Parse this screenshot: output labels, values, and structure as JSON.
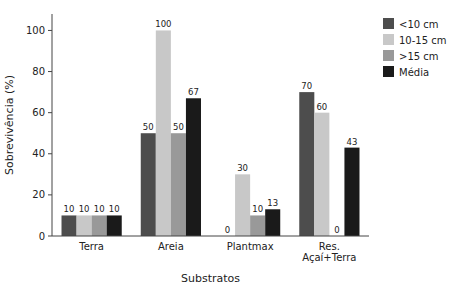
{
  "chart_data": {
    "type": "bar",
    "categories": [
      "Terra",
      "Areia",
      "Plantmax",
      "Res.\nAçaí+Terra"
    ],
    "series": [
      {
        "name": "<10 cm",
        "color": "#4d4d4d",
        "values": [
          10,
          50,
          0,
          70
        ]
      },
      {
        "name": "10-15 cm",
        "color": "#c8c8c8",
        "values": [
          10,
          100,
          30,
          60
        ]
      },
      {
        "name": ">15 cm",
        "color": "#999999",
        "values": [
          10,
          50,
          10,
          0
        ]
      },
      {
        "name": "Média",
        "color": "#1a1a1a",
        "values": [
          10,
          67,
          13,
          43
        ]
      }
    ],
    "ylabel": "Sobrevivência (%)",
    "xlabel": "Substratos",
    "ylim": [
      0,
      108
    ],
    "yticks": [
      0,
      20,
      40,
      60,
      80,
      100
    ],
    "grid": false,
    "legend": "upper right",
    "data_labels": true
  }
}
